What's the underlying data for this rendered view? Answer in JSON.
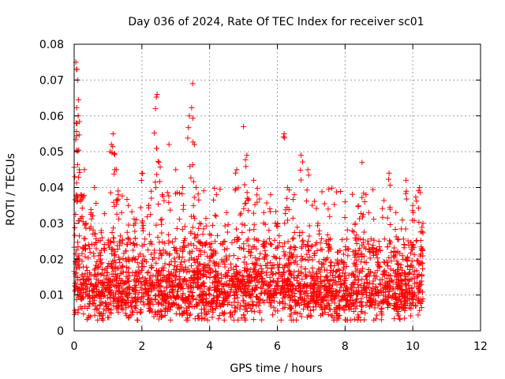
{
  "chart_data": {
    "type": "scatter",
    "title": "Day 036 of 2024, Rate Of TEC Index for receiver sc01",
    "xlabel": "GPS time / hours",
    "ylabel": "ROTI / TECUs",
    "xlim": [
      0,
      12
    ],
    "ylim": [
      0,
      0.08
    ],
    "xticks": [
      0,
      2,
      4,
      6,
      8,
      10,
      12
    ],
    "xtick_labels": [
      "0",
      "2",
      "4",
      "6",
      "8",
      "10",
      "12"
    ],
    "yticks": [
      0,
      0.01,
      0.02,
      0.03,
      0.04,
      0.05,
      0.06,
      0.07,
      0.08
    ],
    "ytick_labels": [
      "0",
      "0.01",
      "0.02",
      "0.03",
      "0.04",
      "0.05",
      "0.06",
      "0.07",
      "0.08"
    ],
    "grid": true,
    "marker": "+",
    "color": "#ff0000",
    "data_x_range": [
      0,
      10.3
    ],
    "series": [
      {
        "name": "sc01",
        "x": [
          0.05,
          0.08,
          0.1,
          0.12,
          0.15,
          0.02,
          0.06,
          0.2,
          0.3,
          0.35,
          0.5,
          0.6,
          0.8,
          1.1,
          1.15,
          1.2,
          1.3,
          1.4,
          1.6,
          1.8,
          2.0,
          2.2,
          2.4,
          2.45,
          2.5,
          2.6,
          2.8,
          3.0,
          3.2,
          3.4,
          3.5,
          3.55,
          3.6,
          3.7,
          4.0,
          4.2,
          4.5,
          4.8,
          5.0,
          5.1,
          5.3,
          5.6,
          5.8,
          6.0,
          6.2,
          6.3,
          6.5,
          6.7,
          6.9,
          7.2,
          7.5,
          7.8,
          8.0,
          8.3,
          8.5,
          8.7,
          9.0,
          9.3,
          9.5,
          9.8,
          10.0,
          10.2,
          10.3
        ],
        "y": [
          0.075,
          0.073,
          0.07,
          0.06,
          0.045,
          0.043,
          0.058,
          0.038,
          0.045,
          0.03,
          0.033,
          0.04,
          0.028,
          0.052,
          0.055,
          0.045,
          0.038,
          0.033,
          0.035,
          0.03,
          0.044,
          0.035,
          0.062,
          0.066,
          0.047,
          0.038,
          0.052,
          0.045,
          0.04,
          0.06,
          0.069,
          0.052,
          0.04,
          0.03,
          0.027,
          0.038,
          0.033,
          0.045,
          0.057,
          0.049,
          0.042,
          0.033,
          0.038,
          0.03,
          0.055,
          0.04,
          0.038,
          0.049,
          0.045,
          0.03,
          0.034,
          0.022,
          0.036,
          0.03,
          0.047,
          0.033,
          0.025,
          0.044,
          0.033,
          0.042,
          0.035,
          0.04,
          0.03
        ]
      }
    ]
  }
}
